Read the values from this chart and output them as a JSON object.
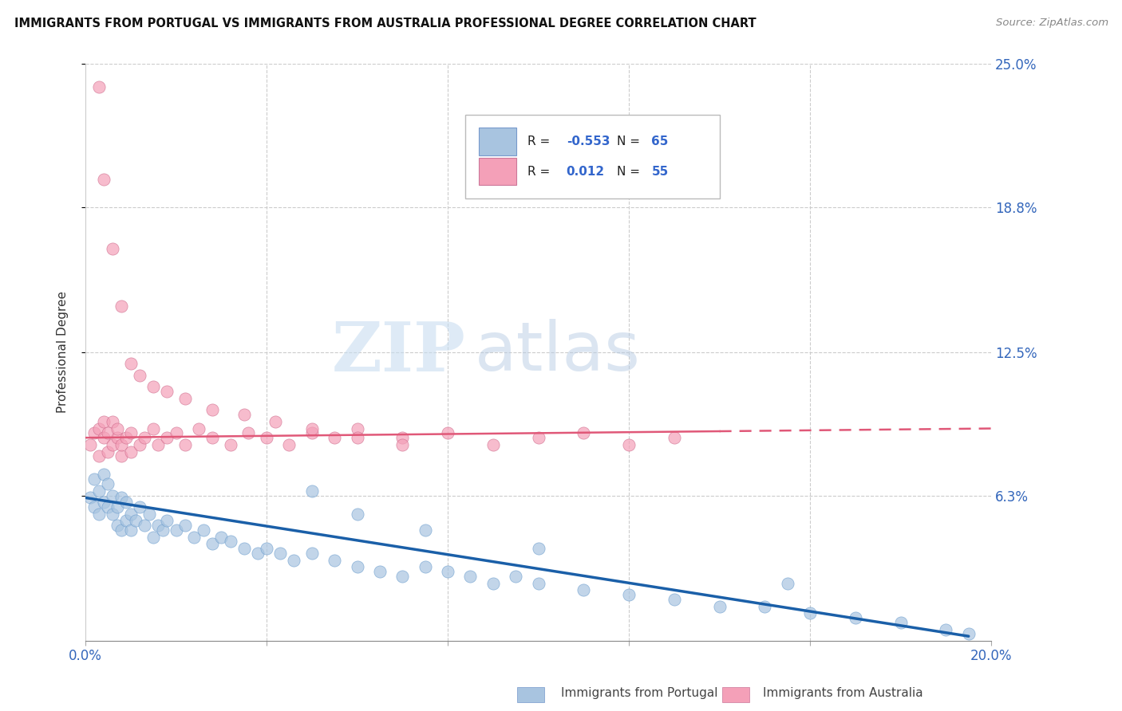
{
  "title": "IMMIGRANTS FROM PORTUGAL VS IMMIGRANTS FROM AUSTRALIA PROFESSIONAL DEGREE CORRELATION CHART",
  "source": "Source: ZipAtlas.com",
  "ylabel": "Professional Degree",
  "xlim": [
    0.0,
    0.2
  ],
  "ylim": [
    0.0,
    0.25
  ],
  "ytick_vals": [
    0.063,
    0.125,
    0.188,
    0.25
  ],
  "ytick_labels": [
    "6.3%",
    "12.5%",
    "18.8%",
    "25.0%"
  ],
  "xtick_vals": [
    0.0,
    0.04,
    0.08,
    0.12,
    0.16,
    0.2
  ],
  "xtick_labels": [
    "0.0%",
    "",
    "",
    "",
    "",
    "20.0%"
  ],
  "legend_R_blue": "-0.553",
  "legend_N_blue": "65",
  "legend_R_pink": "0.012",
  "legend_N_pink": "55",
  "blue_color": "#a8c4e0",
  "pink_color": "#f4a0b8",
  "blue_line_color": "#1a5fa8",
  "pink_line_color": "#e05878",
  "watermark_zip": "ZIP",
  "watermark_atlas": "atlas",
  "blue_x": [
    0.001,
    0.002,
    0.002,
    0.003,
    0.003,
    0.004,
    0.004,
    0.005,
    0.005,
    0.006,
    0.006,
    0.007,
    0.007,
    0.008,
    0.008,
    0.009,
    0.009,
    0.01,
    0.01,
    0.011,
    0.012,
    0.013,
    0.014,
    0.015,
    0.016,
    0.017,
    0.018,
    0.02,
    0.022,
    0.024,
    0.026,
    0.028,
    0.03,
    0.032,
    0.035,
    0.038,
    0.04,
    0.043,
    0.046,
    0.05,
    0.055,
    0.06,
    0.065,
    0.07,
    0.075,
    0.08,
    0.085,
    0.09,
    0.095,
    0.1,
    0.11,
    0.12,
    0.13,
    0.14,
    0.15,
    0.16,
    0.17,
    0.18,
    0.19,
    0.195,
    0.05,
    0.06,
    0.075,
    0.1,
    0.155
  ],
  "blue_y": [
    0.062,
    0.058,
    0.07,
    0.055,
    0.065,
    0.06,
    0.072,
    0.058,
    0.068,
    0.055,
    0.063,
    0.05,
    0.058,
    0.048,
    0.062,
    0.052,
    0.06,
    0.048,
    0.055,
    0.052,
    0.058,
    0.05,
    0.055,
    0.045,
    0.05,
    0.048,
    0.052,
    0.048,
    0.05,
    0.045,
    0.048,
    0.042,
    0.045,
    0.043,
    0.04,
    0.038,
    0.04,
    0.038,
    0.035,
    0.038,
    0.035,
    0.032,
    0.03,
    0.028,
    0.032,
    0.03,
    0.028,
    0.025,
    0.028,
    0.025,
    0.022,
    0.02,
    0.018,
    0.015,
    0.015,
    0.012,
    0.01,
    0.008,
    0.005,
    0.003,
    0.065,
    0.055,
    0.048,
    0.04,
    0.025
  ],
  "pink_x": [
    0.001,
    0.002,
    0.003,
    0.003,
    0.004,
    0.004,
    0.005,
    0.005,
    0.006,
    0.006,
    0.007,
    0.007,
    0.008,
    0.008,
    0.009,
    0.01,
    0.01,
    0.012,
    0.013,
    0.015,
    0.016,
    0.018,
    0.02,
    0.022,
    0.025,
    0.028,
    0.032,
    0.036,
    0.04,
    0.045,
    0.05,
    0.055,
    0.06,
    0.07,
    0.08,
    0.09,
    0.1,
    0.11,
    0.12,
    0.13,
    0.003,
    0.004,
    0.006,
    0.008,
    0.01,
    0.012,
    0.015,
    0.018,
    0.022,
    0.028,
    0.035,
    0.042,
    0.05,
    0.06,
    0.07
  ],
  "pink_y": [
    0.085,
    0.09,
    0.08,
    0.092,
    0.088,
    0.095,
    0.082,
    0.09,
    0.085,
    0.095,
    0.088,
    0.092,
    0.08,
    0.085,
    0.088,
    0.082,
    0.09,
    0.085,
    0.088,
    0.092,
    0.085,
    0.088,
    0.09,
    0.085,
    0.092,
    0.088,
    0.085,
    0.09,
    0.088,
    0.085,
    0.09,
    0.088,
    0.092,
    0.088,
    0.09,
    0.085,
    0.088,
    0.09,
    0.085,
    0.088,
    0.24,
    0.2,
    0.17,
    0.145,
    0.12,
    0.115,
    0.11,
    0.108,
    0.105,
    0.1,
    0.098,
    0.095,
    0.092,
    0.088,
    0.085
  ],
  "pink_trend_x": [
    0.0,
    0.2
  ],
  "pink_trend_y": [
    0.088,
    0.092
  ],
  "blue_trend_x": [
    0.0,
    0.195
  ],
  "blue_trend_y_start": 0.062,
  "blue_trend_y_end": 0.002
}
